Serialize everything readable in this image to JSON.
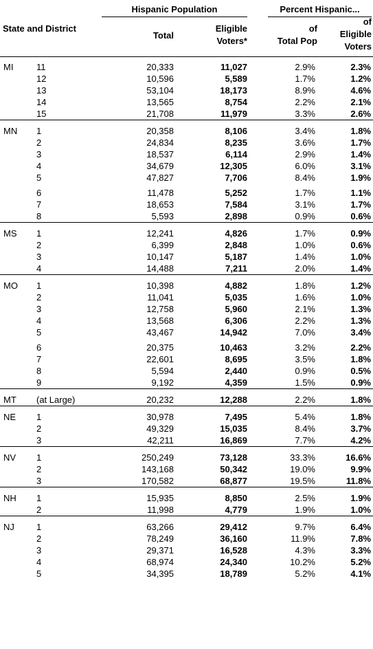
{
  "header": {
    "group_hispanic": "Hispanic Population",
    "group_percent": "Percent Hispanic...",
    "col_state_district": "State and District",
    "col_total": "Total",
    "col_eligible_line1": "Eligible",
    "col_eligible_line2": "Voters*",
    "col_pct_total_line1": "of",
    "col_pct_total_line2": "Total Pop",
    "col_pct_eligible_line1": "of",
    "col_pct_eligible_line2": "Eligible",
    "col_pct_eligible_line3": "Voters"
  },
  "states": [
    {
      "code": "MI",
      "groups": [
        [
          {
            "district": "11",
            "total": "20,333",
            "eligible": "11,027",
            "pct_total": "2.9%",
            "pct_eligible": "2.3%"
          },
          {
            "district": "12",
            "total": "10,596",
            "eligible": "5,589",
            "pct_total": "1.7%",
            "pct_eligible": "1.2%"
          },
          {
            "district": "13",
            "total": "53,104",
            "eligible": "18,173",
            "pct_total": "8.9%",
            "pct_eligible": "4.6%"
          },
          {
            "district": "14",
            "total": "13,565",
            "eligible": "8,754",
            "pct_total": "2.2%",
            "pct_eligible": "2.1%"
          },
          {
            "district": "15",
            "total": "21,708",
            "eligible": "11,979",
            "pct_total": "3.3%",
            "pct_eligible": "2.6%"
          }
        ]
      ]
    },
    {
      "code": "MN",
      "groups": [
        [
          {
            "district": "1",
            "total": "20,358",
            "eligible": "8,106",
            "pct_total": "3.4%",
            "pct_eligible": "1.8%"
          },
          {
            "district": "2",
            "total": "24,834",
            "eligible": "8,235",
            "pct_total": "3.6%",
            "pct_eligible": "1.7%"
          },
          {
            "district": "3",
            "total": "18,537",
            "eligible": "6,114",
            "pct_total": "2.9%",
            "pct_eligible": "1.4%"
          },
          {
            "district": "4",
            "total": "34,679",
            "eligible": "12,305",
            "pct_total": "6.0%",
            "pct_eligible": "3.1%"
          },
          {
            "district": "5",
            "total": "47,827",
            "eligible": "7,706",
            "pct_total": "8.4%",
            "pct_eligible": "1.9%"
          }
        ],
        [
          {
            "district": "6",
            "total": "11,478",
            "eligible": "5,252",
            "pct_total": "1.7%",
            "pct_eligible": "1.1%"
          },
          {
            "district": "7",
            "total": "18,653",
            "eligible": "7,584",
            "pct_total": "3.1%",
            "pct_eligible": "1.7%"
          },
          {
            "district": "8",
            "total": "5,593",
            "eligible": "2,898",
            "pct_total": "0.9%",
            "pct_eligible": "0.6%"
          }
        ]
      ]
    },
    {
      "code": "MS",
      "groups": [
        [
          {
            "district": "1",
            "total": "12,241",
            "eligible": "4,826",
            "pct_total": "1.7%",
            "pct_eligible": "0.9%"
          },
          {
            "district": "2",
            "total": "6,399",
            "eligible": "2,848",
            "pct_total": "1.0%",
            "pct_eligible": "0.6%"
          },
          {
            "district": "3",
            "total": "10,147",
            "eligible": "5,187",
            "pct_total": "1.4%",
            "pct_eligible": "1.0%"
          },
          {
            "district": "4",
            "total": "14,488",
            "eligible": "7,211",
            "pct_total": "2.0%",
            "pct_eligible": "1.4%"
          }
        ]
      ]
    },
    {
      "code": "MO",
      "groups": [
        [
          {
            "district": "1",
            "total": "10,398",
            "eligible": "4,882",
            "pct_total": "1.8%",
            "pct_eligible": "1.2%"
          },
          {
            "district": "2",
            "total": "11,041",
            "eligible": "5,035",
            "pct_total": "1.6%",
            "pct_eligible": "1.0%"
          },
          {
            "district": "3",
            "total": "12,758",
            "eligible": "5,960",
            "pct_total": "2.1%",
            "pct_eligible": "1.3%"
          },
          {
            "district": "4",
            "total": "13,568",
            "eligible": "6,306",
            "pct_total": "2.2%",
            "pct_eligible": "1.3%"
          },
          {
            "district": "5",
            "total": "43,467",
            "eligible": "14,942",
            "pct_total": "7.0%",
            "pct_eligible": "3.4%"
          }
        ],
        [
          {
            "district": "6",
            "total": "20,375",
            "eligible": "10,463",
            "pct_total": "3.2%",
            "pct_eligible": "2.2%"
          },
          {
            "district": "7",
            "total": "22,601",
            "eligible": "8,695",
            "pct_total": "3.5%",
            "pct_eligible": "1.8%"
          },
          {
            "district": "8",
            "total": "5,594",
            "eligible": "2,440",
            "pct_total": "0.9%",
            "pct_eligible": "0.5%"
          },
          {
            "district": "9",
            "total": "9,192",
            "eligible": "4,359",
            "pct_total": "1.5%",
            "pct_eligible": "0.9%"
          }
        ]
      ]
    },
    {
      "code": "MT",
      "groups": [
        [
          {
            "district": "(at Large)",
            "total": "20,232",
            "eligible": "12,288",
            "pct_total": "2.2%",
            "pct_eligible": "1.8%"
          }
        ]
      ]
    },
    {
      "code": "NE",
      "groups": [
        [
          {
            "district": "1",
            "total": "30,978",
            "eligible": "7,495",
            "pct_total": "5.4%",
            "pct_eligible": "1.8%"
          },
          {
            "district": "2",
            "total": "49,329",
            "eligible": "15,035",
            "pct_total": "8.4%",
            "pct_eligible": "3.7%"
          },
          {
            "district": "3",
            "total": "42,211",
            "eligible": "16,869",
            "pct_total": "7.7%",
            "pct_eligible": "4.2%"
          }
        ]
      ]
    },
    {
      "code": "NV",
      "groups": [
        [
          {
            "district": "1",
            "total": "250,249",
            "eligible": "73,128",
            "pct_total": "33.3%",
            "pct_eligible": "16.6%"
          },
          {
            "district": "2",
            "total": "143,168",
            "eligible": "50,342",
            "pct_total": "19.0%",
            "pct_eligible": "9.9%"
          },
          {
            "district": "3",
            "total": "170,582",
            "eligible": "68,877",
            "pct_total": "19.5%",
            "pct_eligible": "11.8%"
          }
        ]
      ]
    },
    {
      "code": "NH",
      "groups": [
        [
          {
            "district": "1",
            "total": "15,935",
            "eligible": "8,850",
            "pct_total": "2.5%",
            "pct_eligible": "1.9%"
          },
          {
            "district": "2",
            "total": "11,998",
            "eligible": "4,779",
            "pct_total": "1.9%",
            "pct_eligible": "1.0%"
          }
        ]
      ]
    },
    {
      "code": "NJ",
      "groups": [
        [
          {
            "district": "1",
            "total": "63,266",
            "eligible": "29,412",
            "pct_total": "9.7%",
            "pct_eligible": "6.4%"
          },
          {
            "district": "2",
            "total": "78,249",
            "eligible": "36,160",
            "pct_total": "11.9%",
            "pct_eligible": "7.8%"
          },
          {
            "district": "3",
            "total": "29,371",
            "eligible": "16,528",
            "pct_total": "4.3%",
            "pct_eligible": "3.3%"
          },
          {
            "district": "4",
            "total": "68,974",
            "eligible": "24,340",
            "pct_total": "10.2%",
            "pct_eligible": "5.2%"
          },
          {
            "district": "5",
            "total": "34,395",
            "eligible": "18,789",
            "pct_total": "5.2%",
            "pct_eligible": "4.1%"
          }
        ]
      ]
    }
  ]
}
